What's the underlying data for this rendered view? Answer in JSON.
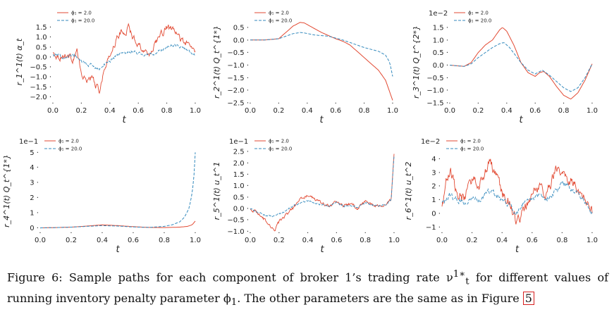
{
  "colors": {
    "phi_low": "#e24a33",
    "phi_high": "#348abd"
  },
  "chart_data": [
    {
      "type": "line",
      "xlabel": "t",
      "ylabel": "r_1^1(t) α_t",
      "sci_label": "",
      "xlim": [
        0,
        1
      ],
      "ylim": [
        -2.3,
        1.8
      ],
      "xticks": [
        0.0,
        0.2,
        0.4,
        0.6,
        0.8,
        1.0
      ],
      "xtick_labels": [
        "0.0",
        "0.2",
        "0.4",
        "0.6",
        "0.8",
        "1.0"
      ],
      "yticks": [
        -2.0,
        -1.5,
        -1.0,
        -0.5,
        0.0,
        0.5,
        1.0,
        1.5
      ],
      "ytick_labels": [
        "−2.0",
        "−1.5",
        "−1.0",
        "−0.5",
        "0.0",
        "0.5",
        "1.0",
        "1.5"
      ],
      "legend": "top-left",
      "series": [
        {
          "name": "ϕ₁ = 2.0",
          "style": "solid",
          "noise": 0.12,
          "x": [
            0,
            0.05,
            0.1,
            0.14,
            0.17,
            0.2,
            0.23,
            0.27,
            0.3,
            0.33,
            0.35,
            0.38,
            0.42,
            0.45,
            0.48,
            0.5,
            0.53,
            0.56,
            0.6,
            0.65,
            0.7,
            0.72,
            0.76,
            0.8,
            0.85,
            0.9,
            0.95,
            1.0
          ],
          "y": [
            0.2,
            0.0,
            0.1,
            -0.1,
            0.3,
            -0.9,
            -1.2,
            -1.0,
            -1.4,
            -1.8,
            -0.9,
            -0.4,
            0.5,
            0.9,
            1.3,
            1.1,
            1.5,
            1.0,
            0.7,
            0.2,
            0.3,
            0.8,
            1.1,
            1.5,
            1.3,
            0.9,
            0.6,
            0.3
          ]
        },
        {
          "name": "ϕ₁ = 20.0",
          "style": "dashed",
          "noise": 0.06,
          "x": [
            0,
            0.05,
            0.1,
            0.15,
            0.2,
            0.25,
            0.3,
            0.33,
            0.36,
            0.4,
            0.45,
            0.5,
            0.55,
            0.6,
            0.65,
            0.7,
            0.75,
            0.8,
            0.85,
            0.9,
            0.95,
            1.0
          ],
          "y": [
            0.1,
            0.05,
            0.0,
            0.1,
            -0.2,
            -0.4,
            -0.5,
            -0.6,
            -0.4,
            -0.2,
            0.1,
            0.2,
            0.3,
            0.2,
            0.1,
            0.15,
            0.3,
            0.5,
            0.6,
            0.5,
            0.3,
            0.1
          ]
        }
      ]
    },
    {
      "type": "line",
      "xlabel": "t",
      "ylabel": "r_2^1(t) Q_t^{1*}",
      "sci_label": "",
      "xlim": [
        0,
        1
      ],
      "ylim": [
        -2.5,
        0.75
      ],
      "xticks": [
        0.0,
        0.2,
        0.4,
        0.6,
        0.8,
        1.0
      ],
      "xtick_labels": [
        "0.0",
        "0.2",
        "0.4",
        "0.6",
        "0.8",
        "1.0"
      ],
      "yticks": [
        -2.5,
        -2.0,
        -1.5,
        -1.0,
        -0.5,
        0.0,
        0.5
      ],
      "ytick_labels": [
        "−2.5",
        "−2.0",
        "−1.5",
        "−1.0",
        "−0.5",
        "0.0",
        "0.5"
      ],
      "legend": "top-left",
      "series": [
        {
          "name": "ϕ₁ = 2.0",
          "style": "solid",
          "noise": 0.0,
          "x": [
            0,
            0.1,
            0.2,
            0.25,
            0.3,
            0.35,
            0.38,
            0.42,
            0.5,
            0.6,
            0.65,
            0.7,
            0.8,
            0.9,
            0.95,
            1.0
          ],
          "y": [
            0.0,
            0.0,
            0.05,
            0.3,
            0.55,
            0.7,
            0.68,
            0.55,
            0.3,
            0.05,
            -0.05,
            -0.2,
            -0.7,
            -1.2,
            -1.6,
            -2.4
          ]
        },
        {
          "name": "ϕ₁ = 20.0",
          "style": "dashed",
          "noise": 0.0,
          "x": [
            0,
            0.1,
            0.2,
            0.25,
            0.3,
            0.35,
            0.38,
            0.45,
            0.55,
            0.65,
            0.7,
            0.8,
            0.9,
            0.95,
            0.98,
            1.0
          ],
          "y": [
            0.0,
            0.0,
            0.05,
            0.15,
            0.25,
            0.3,
            0.28,
            0.2,
            0.15,
            0.0,
            -0.1,
            -0.3,
            -0.45,
            -0.6,
            -0.9,
            -1.45
          ]
        }
      ]
    },
    {
      "type": "line",
      "xlabel": "t",
      "ylabel": "r_3^1(t) Q_t^{2*}",
      "sci_label": "1e−2",
      "xlim": [
        0,
        1
      ],
      "ylim": [
        -1.5,
        1.75
      ],
      "xticks": [
        0.0,
        0.2,
        0.4,
        0.6,
        0.8,
        1.0
      ],
      "xtick_labels": [
        "0.0",
        "0.2",
        "0.4",
        "0.6",
        "0.8",
        "1.0"
      ],
      "yticks": [
        -1.5,
        -1.0,
        -0.5,
        0.0,
        0.5,
        1.0,
        1.5
      ],
      "ytick_labels": [
        "−1.5",
        "−1.0",
        "−0.5",
        "0.0",
        "0.5",
        "1.0",
        "1.5"
      ],
      "legend": "top-left",
      "series": [
        {
          "name": "ϕ₁ = 2.0",
          "style": "solid",
          "noise": 0.0,
          "x": [
            0,
            0.1,
            0.15,
            0.2,
            0.25,
            0.3,
            0.35,
            0.37,
            0.4,
            0.45,
            0.5,
            0.55,
            0.6,
            0.63,
            0.66,
            0.7,
            0.75,
            0.8,
            0.85,
            0.9,
            0.95,
            1.0
          ],
          "y": [
            0.0,
            -0.05,
            0.1,
            0.5,
            0.8,
            1.0,
            1.4,
            1.5,
            1.35,
            0.8,
            0.1,
            -0.3,
            -0.45,
            -0.3,
            -0.25,
            -0.45,
            -0.85,
            -1.2,
            -1.35,
            -1.1,
            -0.6,
            0.05
          ]
        },
        {
          "name": "ϕ₁ = 20.0",
          "style": "dashed",
          "noise": 0.0,
          "x": [
            0,
            0.1,
            0.15,
            0.2,
            0.25,
            0.3,
            0.35,
            0.38,
            0.42,
            0.5,
            0.55,
            0.6,
            0.65,
            0.7,
            0.8,
            0.85,
            0.9,
            0.95,
            1.0
          ],
          "y": [
            0.0,
            -0.05,
            0.05,
            0.3,
            0.5,
            0.7,
            0.85,
            0.9,
            0.7,
            0.1,
            -0.2,
            -0.35,
            -0.2,
            -0.4,
            -0.9,
            -1.05,
            -0.9,
            -0.5,
            0.05
          ]
        }
      ]
    },
    {
      "type": "line",
      "xlabel": "t",
      "ylabel": "r_4^1(t) Q_t^{1*}",
      "sci_label": "1e−1",
      "xlim": [
        0,
        1
      ],
      "ylim": [
        -0.3,
        5.2
      ],
      "xticks": [
        0.0,
        0.2,
        0.4,
        0.6,
        0.8,
        1.0
      ],
      "xtick_labels": [
        "0.0",
        "0.2",
        "0.4",
        "0.6",
        "0.8",
        "1.0"
      ],
      "yticks": [
        0,
        1,
        2,
        3,
        4,
        5
      ],
      "ytick_labels": [
        "0",
        "1",
        "2",
        "3",
        "4",
        "5"
      ],
      "legend": "top-left",
      "series": [
        {
          "name": "ϕ₁ = 2.0",
          "style": "solid",
          "noise": 0.0,
          "x": [
            0,
            0.1,
            0.2,
            0.3,
            0.4,
            0.5,
            0.6,
            0.7,
            0.8,
            0.9,
            0.95,
            0.98,
            1.0
          ],
          "y": [
            0.0,
            0.02,
            0.05,
            0.12,
            0.2,
            0.15,
            0.08,
            0.03,
            0.02,
            0.05,
            0.1,
            0.2,
            0.45
          ]
        },
        {
          "name": "ϕ₁ = 20.0",
          "style": "dashed",
          "noise": 0.0,
          "x": [
            0,
            0.1,
            0.2,
            0.3,
            0.4,
            0.5,
            0.6,
            0.7,
            0.8,
            0.85,
            0.9,
            0.93,
            0.96,
            0.98,
            0.99,
            1.0
          ],
          "y": [
            0.0,
            0.02,
            0.05,
            0.1,
            0.15,
            0.12,
            0.06,
            0.03,
            0.1,
            0.2,
            0.4,
            0.7,
            1.3,
            2.3,
            3.2,
            5.0
          ]
        }
      ]
    },
    {
      "type": "line",
      "xlabel": "t",
      "ylabel": "r_5^1(t) u_t^1",
      "sci_label": "1e−1",
      "xlim": [
        0,
        1
      ],
      "ylim": [
        -1.05,
        2.6
      ],
      "xticks": [
        0.0,
        0.2,
        0.4,
        0.6,
        0.8,
        1.0
      ],
      "xtick_labels": [
        "0.0",
        "0.2",
        "0.4",
        "0.6",
        "0.8",
        "1.0"
      ],
      "yticks": [
        -1.0,
        -0.5,
        0.0,
        0.5,
        1.0,
        1.5,
        2.0,
        2.5
      ],
      "ytick_labels": [
        "−1.0",
        "−0.5",
        "0.0",
        "0.5",
        "1.0",
        "1.5",
        "2.0",
        "2.5"
      ],
      "legend": "top-left",
      "series": [
        {
          "name": "ϕ₁ = 2.0",
          "style": "solid",
          "noise": 0.05,
          "x": [
            0,
            0.05,
            0.1,
            0.15,
            0.17,
            0.2,
            0.25,
            0.3,
            0.35,
            0.4,
            0.45,
            0.5,
            0.55,
            0.6,
            0.65,
            0.7,
            0.75,
            0.8,
            0.85,
            0.9,
            0.95,
            0.98,
            1.0
          ],
          "y": [
            0.0,
            -0.2,
            -0.5,
            -0.8,
            -0.9,
            -0.6,
            -0.3,
            0.0,
            0.4,
            0.6,
            0.4,
            0.2,
            0.1,
            0.3,
            0.1,
            0.2,
            0.0,
            0.3,
            0.2,
            0.1,
            0.2,
            0.4,
            2.4
          ]
        },
        {
          "name": "ϕ₁ = 20.0",
          "style": "dashed",
          "noise": 0.03,
          "x": [
            0,
            0.05,
            0.1,
            0.15,
            0.2,
            0.25,
            0.3,
            0.35,
            0.4,
            0.45,
            0.5,
            0.55,
            0.6,
            0.65,
            0.7,
            0.75,
            0.8,
            0.85,
            0.9,
            0.95,
            0.98,
            1.0
          ],
          "y": [
            0.0,
            -0.15,
            -0.3,
            -0.35,
            -0.25,
            -0.1,
            0.1,
            0.25,
            0.35,
            0.25,
            0.15,
            0.1,
            0.25,
            0.1,
            0.15,
            0.05,
            0.25,
            0.15,
            0.1,
            0.2,
            0.4,
            2.3
          ]
        }
      ]
    },
    {
      "type": "line",
      "xlabel": "t",
      "ylabel": "r_6^1(t) u_t^2",
      "sci_label": "1e−2",
      "xlim": [
        0,
        1
      ],
      "ylim": [
        -1.4,
        4.7
      ],
      "xticks": [
        0.0,
        0.2,
        0.4,
        0.6,
        0.8,
        1.0
      ],
      "xtick_labels": [
        "0.0",
        "0.2",
        "0.4",
        "0.6",
        "0.8",
        "1.0"
      ],
      "yticks": [
        -1,
        0,
        1,
        2,
        3,
        4
      ],
      "ytick_labels": [
        "−1",
        "0",
        "1",
        "2",
        "3",
        "4"
      ],
      "legend": "top-left",
      "series": [
        {
          "name": "ϕ₁ = 2.0",
          "style": "solid",
          "noise": 0.3,
          "x": [
            0,
            0.03,
            0.06,
            0.1,
            0.15,
            0.2,
            0.25,
            0.3,
            0.32,
            0.35,
            0.4,
            0.45,
            0.5,
            0.55,
            0.6,
            0.65,
            0.7,
            0.75,
            0.8,
            0.85,
            0.9,
            0.95,
            1.0
          ],
          "y": [
            0.5,
            2.5,
            3.0,
            1.5,
            1.0,
            2.5,
            2.0,
            3.5,
            3.8,
            3.0,
            1.5,
            0.8,
            -0.8,
            0.5,
            1.5,
            2.0,
            1.5,
            3.0,
            3.2,
            2.5,
            1.8,
            1.0,
            0.0
          ]
        },
        {
          "name": "ϕ₁ = 20.0",
          "style": "dashed",
          "noise": 0.15,
          "x": [
            0,
            0.05,
            0.1,
            0.15,
            0.2,
            0.25,
            0.3,
            0.35,
            0.4,
            0.45,
            0.5,
            0.55,
            0.6,
            0.65,
            0.7,
            0.75,
            0.8,
            0.85,
            0.9,
            0.95,
            1.0
          ],
          "y": [
            0.8,
            1.3,
            1.0,
            0.8,
            1.2,
            1.0,
            1.6,
            1.4,
            0.9,
            0.5,
            0.0,
            0.8,
            1.1,
            1.3,
            1.0,
            1.6,
            2.2,
            2.0,
            1.5,
            0.8,
            0.0
          ]
        }
      ]
    }
  ],
  "caption": {
    "text": "Figure 6: Sample paths for each component of broker 1’s trading rate ν",
    "sup": "1∗",
    "sub": "t",
    "text2": " for different values of running inventory penalty parameter ϕ",
    "sub2": "1",
    "text3": ". The other parameters are the same as in Figure ",
    "ref": "5"
  }
}
